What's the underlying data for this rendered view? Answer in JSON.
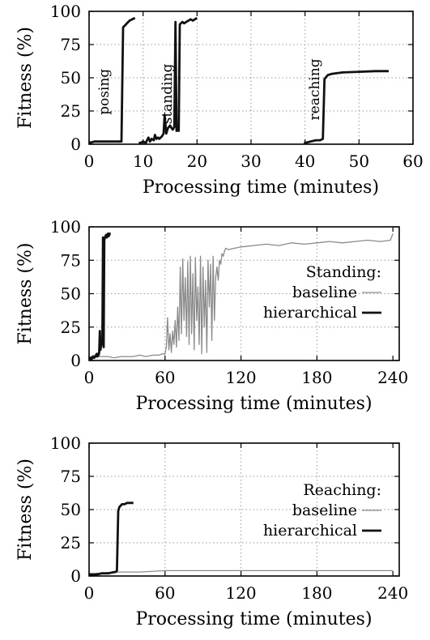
{
  "chart_data": [
    {
      "type": "line",
      "ylabel": "Fitness (%)",
      "xlabel": "Processing time (minutes)",
      "xlim": [
        0,
        60
      ],
      "ylim": [
        0,
        100
      ],
      "xticks": [
        0,
        10,
        20,
        30,
        40,
        50,
        60
      ],
      "yticks": [
        0,
        25,
        50,
        75,
        100
      ],
      "grid": true,
      "annotations": [
        {
          "text": "posing",
          "x": 6,
          "y": 22
        },
        {
          "text": "standing",
          "x": 25.5,
          "y": 15
        },
        {
          "text": "reaching",
          "x": 71,
          "y": 18
        }
      ],
      "series": [
        {
          "style": "thick-black",
          "x": [
            0,
            1,
            5.5,
            6.0,
            6.3,
            6.8,
            7.0,
            7.5,
            8.0,
            8.5,
            9.0,
            9.2,
            9.5,
            10.0,
            10.5,
            11.0,
            11.3,
            11.6,
            12.0,
            12.2,
            12.5,
            12.8,
            13.0,
            13.5,
            13.8,
            14.0,
            14.3,
            14.6,
            15.0,
            15.3,
            15.5,
            15.8,
            16.0,
            16.2,
            16.4,
            16.6,
            16.8,
            17.0,
            17.3,
            17.6,
            18.0,
            18.4,
            18.8,
            19.2,
            19.6,
            20.0,
            20.1,
            39.8,
            40.0,
            42.0,
            42.8,
            43.3,
            43.6,
            44.2,
            45.0,
            47.0,
            50.0,
            53.0,
            55.5
          ],
          "y": [
            1,
            2,
            2,
            2,
            88,
            90,
            91,
            93,
            94,
            95,
            null,
            1,
            1,
            2,
            1,
            5,
            2,
            4,
            3,
            7,
            4,
            5,
            4,
            6,
            8,
            22,
            8,
            12,
            14,
            12,
            11,
            13,
            92,
            10,
            14,
            10,
            90,
            91,
            92,
            91,
            92,
            93,
            94,
            93,
            94,
            95,
            null,
            1,
            1,
            3,
            3,
            4,
            49,
            52,
            53,
            54,
            54.5,
            55,
            55
          ],
          "note": "hierarchical (posing, standing, reaching stages)"
        }
      ]
    },
    {
      "type": "line",
      "ylabel": "Fitness (%)",
      "xlabel": "Processing time (minutes)",
      "xlim": [
        0,
        245
      ],
      "ylim": [
        0,
        100
      ],
      "xticks": [
        0,
        60,
        120,
        180,
        240
      ],
      "yticks": [
        0,
        25,
        50,
        75,
        100
      ],
      "grid": true,
      "legend": {
        "title": "Standing:",
        "placement": "right"
      },
      "series": [
        {
          "name": "baseline",
          "style": "thin-gray",
          "x": [
            0,
            2,
            4,
            6,
            10,
            15,
            20,
            25,
            30,
            35,
            40,
            45,
            50,
            55,
            58,
            60,
            61,
            62,
            63,
            64,
            65,
            66,
            67,
            68,
            69,
            70,
            71,
            72,
            73,
            74,
            75,
            76,
            77,
            78,
            79,
            80,
            81,
            82,
            83,
            84,
            85,
            86,
            87,
            88,
            89,
            90,
            91,
            92,
            93,
            94,
            95,
            96,
            97,
            98,
            99,
            100,
            101,
            102,
            103,
            104,
            105,
            106,
            107,
            108,
            110,
            115,
            120,
            130,
            140,
            150,
            160,
            170,
            180,
            190,
            200,
            210,
            220,
            230,
            238,
            240
          ],
          "y": [
            2,
            3,
            4,
            3,
            3,
            3,
            2,
            3,
            3,
            3,
            4,
            3,
            4,
            4,
            5,
            5,
            10,
            32,
            8,
            20,
            6,
            22,
            12,
            30,
            10,
            40,
            15,
            70,
            20,
            76,
            30,
            62,
            18,
            74,
            12,
            78,
            20,
            65,
            8,
            77,
            30,
            55,
            12,
            78,
            5,
            70,
            25,
            60,
            6,
            75,
            40,
            72,
            15,
            78,
            30,
            62,
            70,
            60,
            75,
            72,
            80,
            78,
            82,
            84,
            83,
            84,
            85,
            86,
            87,
            86,
            88,
            87,
            88,
            89,
            88,
            89,
            90,
            89,
            90,
            95
          ]
        },
        {
          "name": "hierarchical",
          "style": "thick-black",
          "x": [
            0,
            1,
            2,
            3,
            4,
            5,
            5.5,
            6,
            6.5,
            7,
            7.5,
            8,
            8.5,
            9,
            9.5,
            10,
            10.5,
            11,
            11.5,
            12,
            12.5,
            13,
            13.5,
            14,
            14.5,
            15,
            15.5,
            16,
            16.5,
            17
          ],
          "y": [
            1,
            2,
            1,
            3,
            2,
            3,
            4,
            5,
            3,
            5,
            4,
            6,
            22,
            8,
            12,
            14,
            12,
            92,
            10,
            90,
            92,
            93,
            94,
            92,
            94,
            95,
            93,
            94,
            95,
            95
          ]
        }
      ]
    },
    {
      "type": "line",
      "ylabel": "Fitness (%)",
      "xlabel": "Processing time (minutes)",
      "xlim": [
        0,
        245
      ],
      "ylim": [
        0,
        100
      ],
      "xticks": [
        0,
        60,
        120,
        180,
        240
      ],
      "yticks": [
        0,
        25,
        50,
        75,
        100
      ],
      "grid": true,
      "legend": {
        "title": "Reaching:",
        "placement": "right"
      },
      "series": [
        {
          "name": "baseline",
          "style": "thin-gray",
          "x": [
            0,
            10,
            20,
            30,
            40,
            60,
            80,
            100,
            120,
            140,
            160,
            180,
            200,
            220,
            240
          ],
          "y": [
            2,
            2,
            3,
            3,
            3,
            4,
            4,
            4,
            4,
            4,
            4,
            4,
            4,
            4,
            4
          ]
        },
        {
          "name": "hierarchical",
          "style": "thick-black",
          "x": [
            0,
            5,
            10,
            15,
            20,
            21,
            22,
            23,
            24,
            25,
            26,
            28,
            30,
            32,
            34,
            35
          ],
          "y": [
            1,
            1,
            2,
            2,
            3,
            3,
            4,
            49,
            52,
            53,
            54,
            54,
            55,
            55,
            55,
            55
          ]
        }
      ]
    }
  ]
}
